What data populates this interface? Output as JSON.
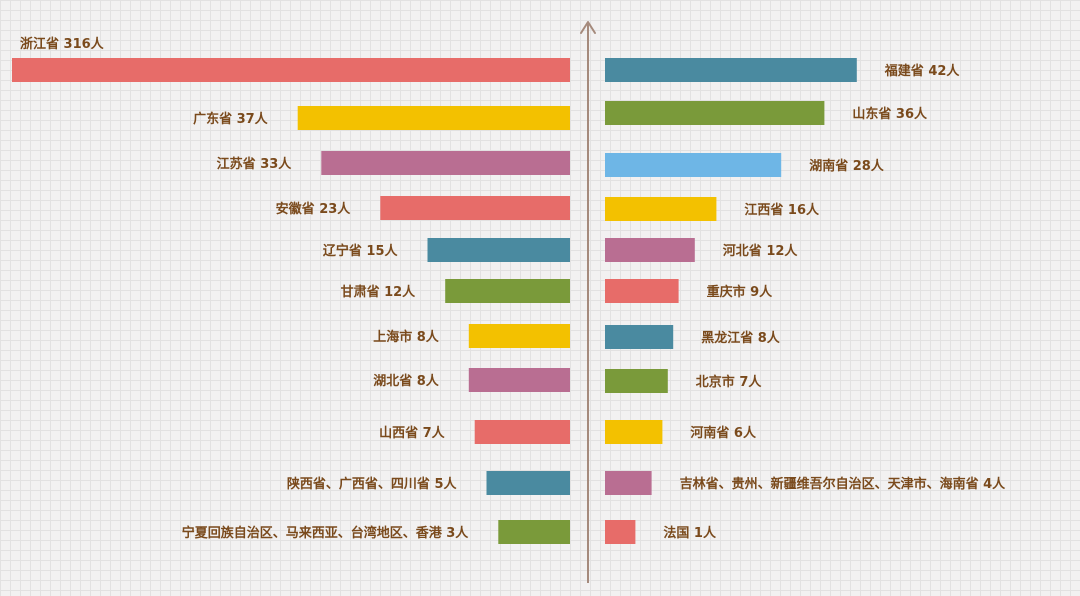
{
  "chart_data": {
    "type": "bar",
    "orientation": "horizontal",
    "layout": "two-sided",
    "grid": true,
    "axis_color": "#a58a7c",
    "label_color": "#7a4a1c",
    "palette": {
      "red": "#e76c69",
      "teal": "#4a8aa0",
      "gold": "#f3c100",
      "mauve": "#b96e92",
      "olive": "#7a9a3a",
      "sky": "#6eb6e6"
    },
    "left": [
      {
        "name": "浙江省",
        "value": 316,
        "unit": "人",
        "color": "#e76c69"
      },
      {
        "name": "广东省",
        "value": 37,
        "unit": "人",
        "color": "#f3c100"
      },
      {
        "name": "江苏省",
        "value": 33,
        "unit": "人",
        "color": "#b96e92"
      },
      {
        "name": "安徽省",
        "value": 23,
        "unit": "人",
        "color": "#e76c69"
      },
      {
        "name": "辽宁省",
        "value": 15,
        "unit": "人",
        "color": "#4a8aa0"
      },
      {
        "name": "甘肃省",
        "value": 12,
        "unit": "人",
        "color": "#7a9a3a"
      },
      {
        "name": "上海市",
        "value": 8,
        "unit": "人",
        "color": "#f3c100"
      },
      {
        "name": "湖北省",
        "value": 8,
        "unit": "人",
        "color": "#b96e92"
      },
      {
        "name": "山西省",
        "value": 7,
        "unit": "人",
        "color": "#e76c69"
      },
      {
        "name": "陕西省、广西省、四川省",
        "value": 5,
        "unit": "人",
        "color": "#4a8aa0"
      },
      {
        "name": "宁夏回族自治区、马来西亚、台湾地区、香港",
        "value": 3,
        "unit": "人",
        "color": "#7a9a3a"
      }
    ],
    "right": [
      {
        "name": "福建省",
        "value": 42,
        "unit": "人",
        "color": "#4a8aa0"
      },
      {
        "name": "山东省",
        "value": 36,
        "unit": "人",
        "color": "#7a9a3a"
      },
      {
        "name": "湖南省",
        "value": 28,
        "unit": "人",
        "color": "#6eb6e6"
      },
      {
        "name": "江西省",
        "value": 16,
        "unit": "人",
        "color": "#f3c100"
      },
      {
        "name": "河北省",
        "value": 12,
        "unit": "人",
        "color": "#b96e92"
      },
      {
        "name": "重庆市",
        "value": 9,
        "unit": "人",
        "color": "#e76c69"
      },
      {
        "name": "黑龙江省",
        "value": 8,
        "unit": "人",
        "color": "#4a8aa0"
      },
      {
        "name": "北京市",
        "value": 7,
        "unit": "人",
        "color": "#7a9a3a"
      },
      {
        "name": "河南省",
        "value": 6,
        "unit": "人",
        "color": "#f3c100"
      },
      {
        "name": "吉林省、贵州、新疆维吾尔自治区、天津市、海南省",
        "value": 4,
        "unit": "人",
        "color": "#b96e92"
      },
      {
        "name": "法国",
        "value": 1,
        "unit": "人",
        "color": "#e76c69"
      }
    ]
  }
}
